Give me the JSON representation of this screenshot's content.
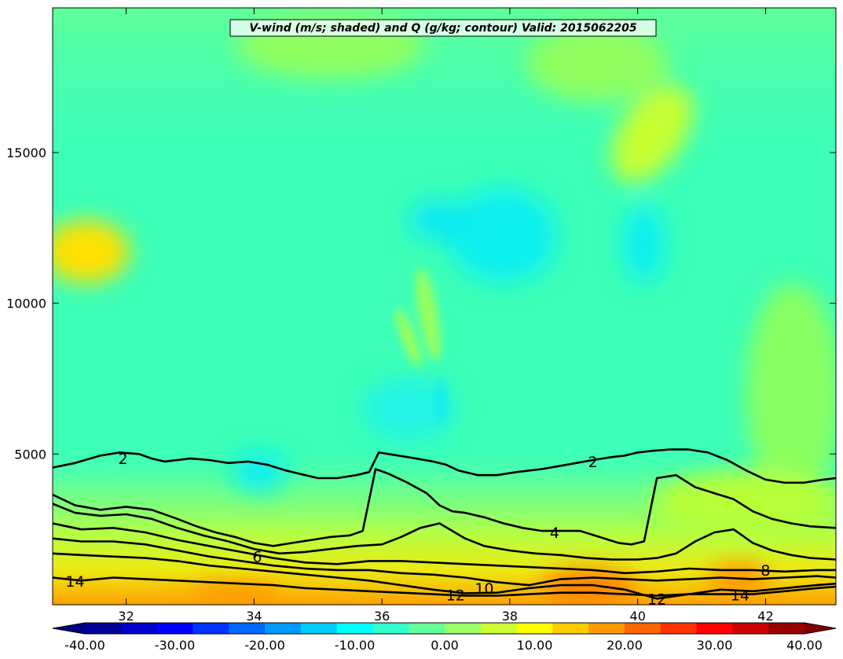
{
  "chart_data": {
    "type": "heatmap",
    "title": "V-wind (m/s; shaded) and Q (g/kg; contour) Valid: 2015062205",
    "xlabel": "",
    "ylabel": "",
    "xlim": [
      30.85,
      43.1
    ],
    "ylim": [
      0,
      19800
    ],
    "x_ticks": [
      32,
      34,
      36,
      38,
      40,
      42
    ],
    "x_tick_labels": [
      "32",
      "34",
      "36",
      "38",
      "40",
      "42"
    ],
    "y_ticks": [
      5000,
      10000,
      15000
    ],
    "y_tick_labels": [
      "5000",
      "10000",
      "15000"
    ],
    "shaded_variable": "V-wind (m/s)",
    "contour_variable": "Q (g/kg)",
    "colorbar": {
      "min": -40,
      "max": 40,
      "step": 4,
      "extend": "both",
      "ticks": [
        -40,
        -30,
        -20,
        -10,
        0,
        10,
        20,
        30,
        40
      ],
      "tick_labels": [
        "-40.00",
        "-30.00",
        "-20.00",
        "-10.00",
        "0.00",
        "10.00",
        "20.00",
        "30.00",
        "40.00"
      ],
      "colormap": "jet"
    },
    "contour_labels": [
      {
        "text": "2",
        "x": 31.95,
        "y": 4850
      },
      {
        "text": "2",
        "x": 39.3,
        "y": 4750
      },
      {
        "text": "4",
        "x": 38.7,
        "y": 2400
      },
      {
        "text": "6",
        "x": 34.05,
        "y": 1600
      },
      {
        "text": "8",
        "x": 42.0,
        "y": 1150
      },
      {
        "text": "10",
        "x": 37.6,
        "y": 550
      },
      {
        "text": "12",
        "x": 37.15,
        "y": 330
      },
      {
        "text": "12",
        "x": 40.3,
        "y": 200
      },
      {
        "text": "14",
        "x": 31.2,
        "y": 780
      },
      {
        "text": "14",
        "x": 41.6,
        "y": 330
      }
    ],
    "contours": [
      {
        "level": 2,
        "x": [
          30.85,
          31.2,
          31.6,
          31.9,
          32.2,
          32.4,
          32.6,
          33.0,
          33.3,
          33.6,
          33.9,
          34.2,
          34.5,
          34.8,
          35.0,
          35.3,
          35.6,
          35.8,
          35.95,
          36.1,
          36.4,
          36.8,
          37.0,
          37.2,
          37.5,
          37.8,
          38.1,
          38.5,
          38.9,
          39.3,
          39.6,
          39.8,
          40.0,
          40.2,
          40.5,
          40.8,
          41.1,
          41.4,
          41.7,
          42.0,
          42.3,
          42.6,
          42.9,
          43.1
        ],
        "y": [
          4550,
          4700,
          4950,
          5050,
          5000,
          4850,
          4750,
          4850,
          4800,
          4700,
          4750,
          4650,
          4450,
          4300,
          4200,
          4200,
          4300,
          4400,
          5050,
          5000,
          4900,
          4750,
          4650,
          4450,
          4300,
          4300,
          4400,
          4500,
          4650,
          4800,
          4900,
          4950,
          5050,
          5100,
          5150,
          5150,
          5050,
          4800,
          4450,
          4150,
          4050,
          4050,
          4150,
          4200
        ]
      },
      {
        "level": 4,
        "x": [
          30.85,
          31.2,
          31.6,
          32.0,
          32.4,
          32.8,
          33.1,
          33.4,
          33.7,
          34.0,
          34.3,
          34.6,
          34.9,
          35.2,
          35.5,
          35.7,
          35.9,
          36.1,
          36.4,
          36.7,
          36.9,
          37.1,
          37.3,
          37.6,
          37.9,
          38.2,
          38.5,
          38.8,
          39.1,
          39.4,
          39.7,
          39.9,
          40.1,
          40.3,
          40.6,
          40.9,
          41.2,
          41.5,
          41.8,
          42.1,
          42.4,
          42.7,
          43.1
        ],
        "y": [
          3650,
          3300,
          3150,
          3250,
          3150,
          2850,
          2600,
          2400,
          2250,
          2050,
          1950,
          2050,
          2150,
          2250,
          2300,
          2450,
          4500,
          4350,
          4050,
          3700,
          3300,
          3100,
          3050,
          2900,
          2700,
          2550,
          2450,
          2450,
          2450,
          2250,
          2050,
          2000,
          2100,
          4200,
          4300,
          3900,
          3700,
          3500,
          3100,
          2850,
          2700,
          2600,
          2550
        ]
      },
      {
        "level": 6,
        "x": [
          30.85,
          31.2,
          31.6,
          32.0,
          32.4,
          32.8,
          33.2,
          33.6,
          34.0,
          34.4,
          34.8,
          35.2,
          35.6,
          36.0,
          36.3,
          36.6,
          36.9,
          37.1,
          37.3,
          37.6,
          38.0,
          38.4,
          38.8,
          39.2,
          39.6,
          40.0,
          40.3,
          40.6,
          40.9,
          41.2,
          41.5,
          41.8,
          42.1,
          42.4,
          42.7,
          43.1
        ],
        "y": [
          3350,
          3050,
          2950,
          3000,
          2850,
          2550,
          2300,
          2100,
          1850,
          1700,
          1750,
          1850,
          1950,
          2000,
          2250,
          2550,
          2700,
          2450,
          2200,
          1950,
          1800,
          1700,
          1650,
          1550,
          1500,
          1500,
          1550,
          1700,
          2100,
          2400,
          2500,
          2050,
          1800,
          1650,
          1550,
          1500
        ]
      },
      {
        "level": 8,
        "x": [
          30.85,
          31.3,
          31.8,
          32.3,
          32.8,
          33.3,
          33.8,
          34.3,
          34.8,
          35.3,
          35.8,
          36.3,
          36.8,
          37.3,
          37.8,
          38.3,
          38.8,
          39.3,
          39.8,
          40.3,
          40.8,
          41.3,
          41.8,
          42.3,
          42.8,
          43.1
        ],
        "y": [
          2700,
          2500,
          2550,
          2400,
          2150,
          1950,
          1750,
          1550,
          1400,
          1350,
          1450,
          1450,
          1400,
          1350,
          1300,
          1250,
          1200,
          1150,
          1050,
          1100,
          1200,
          1150,
          1150,
          1100,
          1150,
          1150
        ]
      },
      {
        "level": 10,
        "x": [
          30.85,
          31.3,
          31.8,
          32.3,
          32.8,
          33.3,
          33.8,
          34.3,
          34.8,
          35.3,
          35.8,
          36.3,
          36.8,
          37.3,
          37.8,
          38.3,
          38.8,
          39.3,
          39.8,
          40.3,
          40.8,
          41.3,
          41.8,
          42.3,
          42.8,
          43.1
        ],
        "y": [
          2200,
          2100,
          2100,
          2000,
          1800,
          1600,
          1450,
          1300,
          1200,
          1150,
          1150,
          1050,
          1000,
          900,
          750,
          650,
          850,
          900,
          850,
          800,
          850,
          900,
          850,
          900,
          950,
          900
        ]
      },
      {
        "level": 12,
        "x": [
          30.85,
          31.3,
          31.8,
          32.3,
          32.8,
          33.3,
          33.8,
          34.3,
          34.8,
          35.3,
          35.8,
          36.3,
          36.8,
          37.3,
          37.8,
          38.3,
          38.8,
          39.3,
          39.8,
          40.3,
          40.8,
          41.3,
          41.8,
          42.3,
          42.8,
          43.1
        ],
        "y": [
          1700,
          1650,
          1600,
          1550,
          1450,
          1300,
          1200,
          1100,
          1000,
          900,
          800,
          650,
          500,
          380,
          400,
          550,
          650,
          650,
          500,
          200,
          350,
          500,
          450,
          550,
          650,
          700
        ]
      },
      {
        "level": 14,
        "x": [
          30.85,
          31.3,
          31.8,
          32.3,
          32.8,
          33.3,
          33.8,
          34.3,
          34.8,
          35.3,
          35.8,
          36.3,
          36.8,
          37.3,
          37.8,
          38.3,
          38.8,
          39.3,
          39.8,
          40.3,
          40.8,
          41.3,
          41.8,
          42.3,
          42.8,
          43.1
        ],
        "y": [
          900,
          800,
          900,
          850,
          800,
          750,
          700,
          650,
          550,
          500,
          450,
          400,
          350,
          300,
          300,
          350,
          400,
          400,
          350,
          300,
          350,
          350,
          350,
          450,
          550,
          600
        ]
      }
    ]
  }
}
